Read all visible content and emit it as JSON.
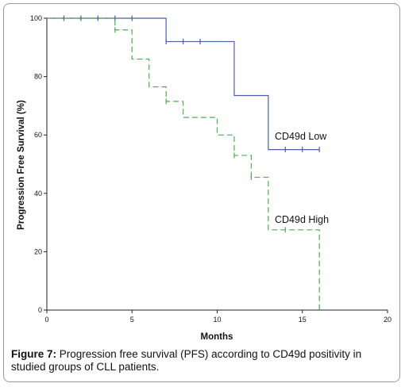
{
  "chart_data": {
    "type": "line",
    "xlabel": "Months",
    "ylabel": "Progression Free Survival (%)",
    "xlim": [
      0,
      20
    ],
    "ylim": [
      0,
      100
    ],
    "x_ticks": [
      "0",
      "5",
      "10",
      "15",
      "20"
    ],
    "y_ticks": [
      "0",
      "20",
      "40",
      "60",
      "80",
      "100"
    ],
    "grid": false,
    "legend": "inline labels",
    "series": [
      {
        "name": "CD49d Low",
        "color": "#4a5fa8",
        "dash": "solid",
        "steps": [
          [
            0,
            100
          ],
          [
            7,
            92
          ],
          [
            11,
            73.5
          ],
          [
            13,
            55
          ],
          [
            16,
            55
          ]
        ],
        "censored": [
          1,
          2,
          3,
          4,
          5,
          7,
          8,
          9,
          14,
          15,
          16
        ]
      },
      {
        "name": "CD49d High",
        "color": "#4caf50",
        "dash": "dashed",
        "steps": [
          [
            0,
            100
          ],
          [
            4,
            96
          ],
          [
            5,
            86
          ],
          [
            6,
            76.5
          ],
          [
            7,
            71.5
          ],
          [
            8,
            66
          ],
          [
            10,
            60
          ],
          [
            11,
            53
          ],
          [
            12,
            45.5
          ],
          [
            13,
            27.5
          ],
          [
            16,
            0
          ]
        ],
        "censored": [
          4,
          7,
          11,
          12,
          14
        ]
      }
    ]
  },
  "caption": {
    "label": "Figure 7:",
    "text": " Progression free survival (PFS) according to CD49d positivity in studied groups of CLL patients."
  }
}
